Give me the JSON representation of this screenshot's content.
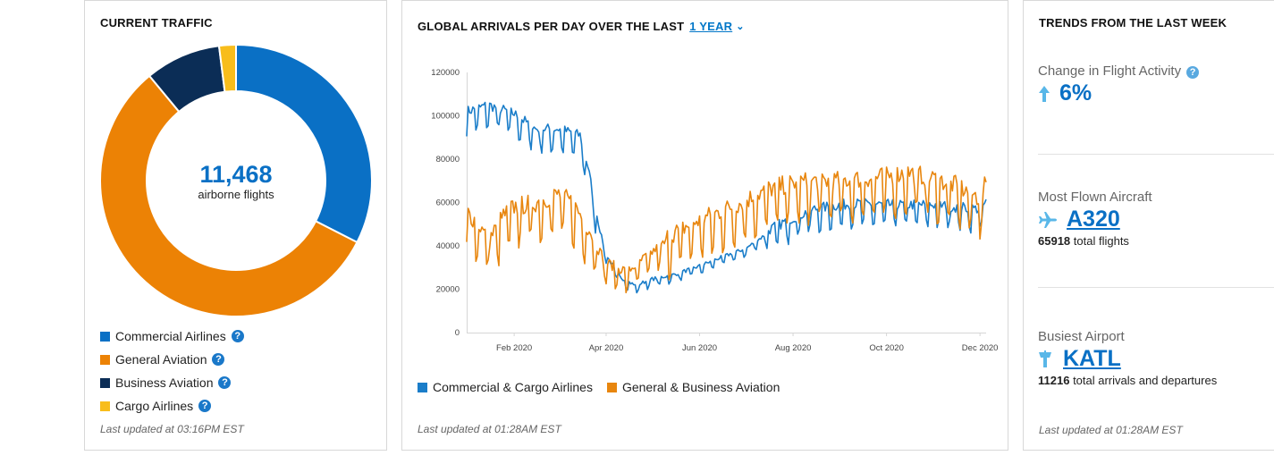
{
  "traffic": {
    "title": "CURRENT TRAFFIC",
    "total": "11,468",
    "total_label": "airborne flights",
    "legend": [
      {
        "label": "Commercial Airlines",
        "color": "#0a70c5"
      },
      {
        "label": "General Aviation",
        "color": "#ec8205"
      },
      {
        "label": "Business Aviation",
        "color": "#0b2d56"
      },
      {
        "label": "Cargo Airlines",
        "color": "#f8bd1b"
      }
    ],
    "updated": "Last updated at 03:16PM EST"
  },
  "arrivals": {
    "title": "GLOBAL ARRIVALS PER DAY OVER THE LAST",
    "range": "1 YEAR",
    "legend": [
      {
        "label": "Commercial & Cargo Airlines",
        "color": "#1a7dc9"
      },
      {
        "label": "General & Business Aviation",
        "color": "#e8860e"
      }
    ],
    "updated": "Last updated at 01:28AM EST"
  },
  "trends": {
    "title": "TRENDS FROM THE LAST WEEK",
    "change_label": "Change in Flight Activity",
    "change_value": "6%",
    "aircraft_label": "Most Flown Aircraft",
    "aircraft_value": "A320",
    "aircraft_count": "65918",
    "aircraft_suffix": "total flights",
    "airport_label": "Busiest Airport",
    "airport_value": "KATL",
    "airport_count": "11216",
    "airport_suffix": "total arrivals and departures",
    "updated": "Last updated at 01:28AM EST"
  },
  "chart_data": [
    {
      "type": "pie",
      "title": "CURRENT TRAFFIC",
      "categories": [
        "Commercial Airlines",
        "General Aviation",
        "Business Aviation",
        "Cargo Airlines"
      ],
      "values": [
        32.5,
        56.5,
        9.0,
        2.0
      ],
      "colors": [
        "#0a70c5",
        "#ec8205",
        "#0b2d56",
        "#f8bd1b"
      ],
      "total": 11468
    },
    {
      "type": "line",
      "title": "GLOBAL ARRIVALS PER DAY OVER THE LAST",
      "ylim": [
        0,
        120000
      ],
      "yticks": [
        0,
        20000,
        40000,
        60000,
        80000,
        100000,
        120000
      ],
      "xticks": [
        "Feb 2020",
        "Apr 2020",
        "Jun 2020",
        "Aug 2020",
        "Oct 2020",
        "Dec 2020"
      ],
      "xtick_positions": [
        "2020-02-01",
        "2020-04-01",
        "2020-06-01",
        "2020-08-01",
        "2020-10-01",
        "2020-12-01"
      ],
      "x_range": [
        "2020-01-01",
        "2020-12-05"
      ],
      "grid": false,
      "legend": "bottom",
      "series": [
        {
          "name": "Commercial & Cargo Airlines",
          "color": "#1a7dc9",
          "x": [
            "2020-01-01",
            "2020-01-15",
            "2020-02-01",
            "2020-02-15",
            "2020-03-01",
            "2020-03-15",
            "2020-03-20",
            "2020-03-25",
            "2020-04-01",
            "2020-04-10",
            "2020-04-20",
            "2020-05-01",
            "2020-05-15",
            "2020-06-01",
            "2020-06-15",
            "2020-07-01",
            "2020-07-15",
            "2020-08-01",
            "2020-08-15",
            "2020-09-01",
            "2020-09-15",
            "2020-10-01",
            "2020-10-15",
            "2020-11-01",
            "2020-11-15",
            "2020-12-01",
            "2020-12-05"
          ],
          "values": [
            100000,
            103000,
            99000,
            92000,
            92000,
            89000,
            75000,
            55000,
            35000,
            25000,
            21000,
            24000,
            26000,
            30000,
            34000,
            38000,
            45000,
            51000,
            55000,
            57000,
            57500,
            57000,
            57000,
            57000,
            56000,
            55000,
            58000
          ]
        },
        {
          "name": "General & Business Aviation",
          "color": "#e8860e",
          "x": [
            "2020-01-01",
            "2020-01-10",
            "2020-01-15",
            "2020-01-25",
            "2020-02-01",
            "2020-02-15",
            "2020-03-01",
            "2020-03-10",
            "2020-03-20",
            "2020-04-01",
            "2020-04-15",
            "2020-05-01",
            "2020-05-15",
            "2020-06-01",
            "2020-06-15",
            "2020-07-01",
            "2020-07-15",
            "2020-08-01",
            "2020-08-15",
            "2020-09-01",
            "2020-09-15",
            "2020-10-01",
            "2020-10-15",
            "2020-11-01",
            "2020-11-15",
            "2020-12-01",
            "2020-12-05"
          ],
          "values": [
            52000,
            45000,
            38000,
            50000,
            54000,
            56000,
            60000,
            56000,
            45000,
            30000,
            26000,
            35000,
            42000,
            48000,
            52000,
            57000,
            62000,
            65000,
            66000,
            66000,
            67000,
            68000,
            70000,
            67000,
            64000,
            58000,
            65000
          ]
        }
      ]
    }
  ]
}
